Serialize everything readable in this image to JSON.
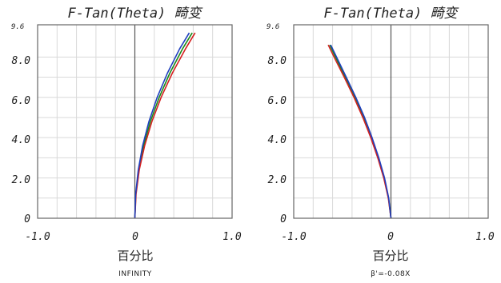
{
  "chart_data": [
    {
      "type": "line",
      "title": "F-Tan(Theta) 畸变",
      "xlabel": "百分比",
      "subtitle": "INFINITY",
      "xlim": [
        -1.0,
        1.0
      ],
      "ylim": [
        0,
        9.6
      ],
      "xticks": [
        "-1.0",
        "0",
        "1.0"
      ],
      "yticks": [
        "0",
        "2.0",
        "4.0",
        "6.0",
        "8.0"
      ],
      "ytop_label": "9.6",
      "grid": true,
      "series": [
        {
          "color": "#1a8a1a",
          "x": [
            0,
            0.01,
            0.04,
            0.09,
            0.16,
            0.25,
            0.36,
            0.49,
            0.59
          ],
          "y": [
            0,
            1.2,
            2.4,
            3.6,
            4.8,
            6.0,
            7.2,
            8.4,
            9.2
          ]
        },
        {
          "color": "#d42020",
          "x": [
            0,
            0.012,
            0.045,
            0.1,
            0.175,
            0.27,
            0.385,
            0.52,
            0.62
          ],
          "y": [
            0,
            1.2,
            2.4,
            3.6,
            4.8,
            6.0,
            7.2,
            8.4,
            9.2
          ]
        },
        {
          "color": "#1f3fbf",
          "x": [
            0,
            0.008,
            0.035,
            0.08,
            0.145,
            0.23,
            0.335,
            0.46,
            0.56
          ],
          "y": [
            0,
            1.2,
            2.4,
            3.6,
            4.8,
            6.0,
            7.2,
            8.4,
            9.2
          ]
        }
      ]
    },
    {
      "type": "line",
      "title": "F-Tan(Theta) 畸变",
      "xlabel": "百分比",
      "subtitle": "β'=-0.08X",
      "xlim": [
        -1.0,
        1.0
      ],
      "ylim": [
        0,
        9.6
      ],
      "xticks": [
        "-1.0",
        "0",
        "1.0"
      ],
      "yticks": [
        "0",
        "2.0",
        "4.0",
        "6.0",
        "8.0"
      ],
      "ytop_label": "9.6",
      "grid": true,
      "series": [
        {
          "color": "#1a8a1a",
          "x": [
            0,
            -0.025,
            -0.07,
            -0.13,
            -0.2,
            -0.28,
            -0.37,
            -0.47,
            -0.57,
            -0.63
          ],
          "y": [
            0,
            1.0,
            2.0,
            3.0,
            4.0,
            5.0,
            6.0,
            7.0,
            8.0,
            8.6
          ]
        },
        {
          "color": "#d42020",
          "x": [
            0,
            -0.027,
            -0.074,
            -0.136,
            -0.207,
            -0.289,
            -0.38,
            -0.481,
            -0.585,
            -0.645
          ],
          "y": [
            0,
            1.0,
            2.0,
            3.0,
            4.0,
            5.0,
            6.0,
            7.0,
            8.0,
            8.6
          ]
        },
        {
          "color": "#1f3fbf",
          "x": [
            0,
            -0.023,
            -0.066,
            -0.125,
            -0.194,
            -0.272,
            -0.361,
            -0.46,
            -0.56,
            -0.62
          ],
          "y": [
            0,
            1.0,
            2.0,
            3.0,
            4.0,
            5.0,
            6.0,
            7.0,
            8.0,
            8.6
          ]
        }
      ]
    }
  ]
}
